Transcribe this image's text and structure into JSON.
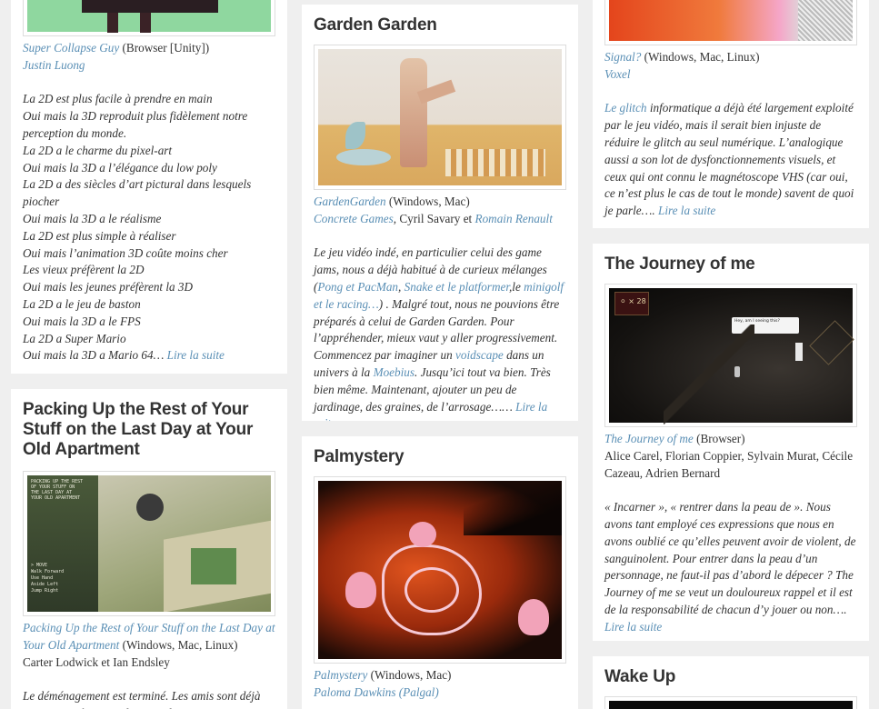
{
  "col1": {
    "card1": {
      "game_link": "Super Collapse Guy",
      "platform": " (Browser [Unity])",
      "author_link": "Justin Luong",
      "lines": [
        "La 2D est plus facile à prendre en main",
        "Oui mais la 3D reproduit plus fidèlement notre perception du monde.",
        "La 2D a le charme du pixel-art",
        "Oui mais la 3D a l’élégance du low poly",
        "La 2D a des siècles d’art pictural dans lesquels piocher",
        "Oui mais la 3D a le réalisme",
        "La 2D est plus simple à réaliser",
        "Oui mais l’animation 3D coûte moins cher",
        "Les vieux préfèrent la 2D",
        "Oui mais les jeunes préfèrent la 3D",
        "La 2D a le jeu de baston",
        "Oui mais la 3D a le FPS",
        "La 2D a Super Mario"
      ],
      "last_line": "Oui mais la 3D a Mario 64… ",
      "read_more": "Lire la suite"
    },
    "card2": {
      "title": "Packing Up the Rest of Your Stuff on the Last Day at Your Old Apartment",
      "game_link": "Packing Up the Rest of Your Stuff on the Last Day at Your Old Apartment",
      "platform": " (Windows, Mac, Linux)",
      "authors": "Carter Lodwick et Ian Endsley",
      "body": "Le déménagement est terminé. Les amis sont déjà repartis. C’était rapide. Faut dire que l’appartement",
      "thumb_lines": [
        "PACKING UP THE REST",
        "OF YOUR STUFF ON",
        "THE LAST DAY AT",
        "YOUR OLD APARTMENT"
      ],
      "thumb_menu": [
        "> MOVE",
        "  Walk Forward",
        "  Use Hand",
        "  Aside Left",
        "  Jump Right"
      ]
    }
  },
  "col2": {
    "card1": {
      "title": "Garden Garden",
      "game_link": "GardenGarden",
      "platform": " (Windows, Mac)",
      "studio_link": "Concrete Games",
      "author_mid": ", Cyril Savary et ",
      "author_link2": "Romain Renault",
      "body_parts": [
        {
          "t": "Le jeu vidéo indé, en particulier celui des game jams, nous a déjà habitué à de curieux mélanges (",
          "l": false
        },
        {
          "t": "Pong et PacMan",
          "l": true
        },
        {
          "t": ", ",
          "l": false
        },
        {
          "t": "Snake et le platformer",
          "l": true
        },
        {
          "t": ",le ",
          "l": false
        },
        {
          "t": "minigolf et le racing…",
          "l": true
        },
        {
          "t": ") . Malgré tout, nous ne pouvions être préparés à celui de Garden Garden. Pour l’appréhender, mieux vaut y aller progressivement. Commencez par imaginer un ",
          "l": false
        },
        {
          "t": "voidscape",
          "l": true
        },
        {
          "t": " dans un univers à la ",
          "l": false
        },
        {
          "t": "Moebius",
          "l": true
        },
        {
          "t": ". Jusqu’ici tout va bien. Très bien même. Maintenant, ajouter un peu de jardinage, des graines, de l’arrosage…… ",
          "l": false
        },
        {
          "t": "Lire la suite",
          "l": true
        }
      ]
    },
    "card2": {
      "title": "Palmystery",
      "game_link": "Palmystery",
      "platform": " (Windows, Mac)",
      "author_link": "Paloma Dawkins (Palgal)"
    }
  },
  "col3": {
    "card1": {
      "game_link": "Signal?",
      "platform": " (Windows, Mac, Linux)",
      "author_link": "Voxel",
      "body_parts": [
        {
          "t": "Le glitch",
          "l": true
        },
        {
          "t": " informatique a déjà été largement exploité par le jeu vidéo, mais il serait bien injuste de réduire le glitch au seul numérique. L’analogique aussi a son lot de dysfonctionnements visuels, et ceux qui ont connu le magnétoscope VHS (car oui, ce n’est plus le cas de tout le monde) savent de quoi je parle…. ",
          "l": false
        },
        {
          "t": "Lire la suite",
          "l": true
        }
      ]
    },
    "card2": {
      "title": "The Journey of me",
      "game_link": "The Journey of me",
      "platform": " (Browser)",
      "authors": "Alice Carel, Florian Coppier, Sylvain Murat, Cécile Cazeau, Adrien Bernard",
      "body": "« Incarner », « rentrer dans la peau de ». Nous avons tant employé ces expressions que nous en avons oublié ce qu’elles peuvent avoir de violent, de sanguinolent. Pour entrer dans la peau d’un personnage, ne faut-il pas d’abord le dépecer ? The Journey of me se veut un douloureux rappel et il est de la responsabilité de chacun d’y jouer ou non…. ",
      "read_more": "Lire la suite",
      "hud_count": "28",
      "speech": "Hey, am I seeing this?"
    },
    "card3": {
      "title": "Wake Up"
    }
  },
  "colors": {
    "link": "#5a8fb5",
    "background": "#efefef",
    "card": "#ffffff"
  }
}
